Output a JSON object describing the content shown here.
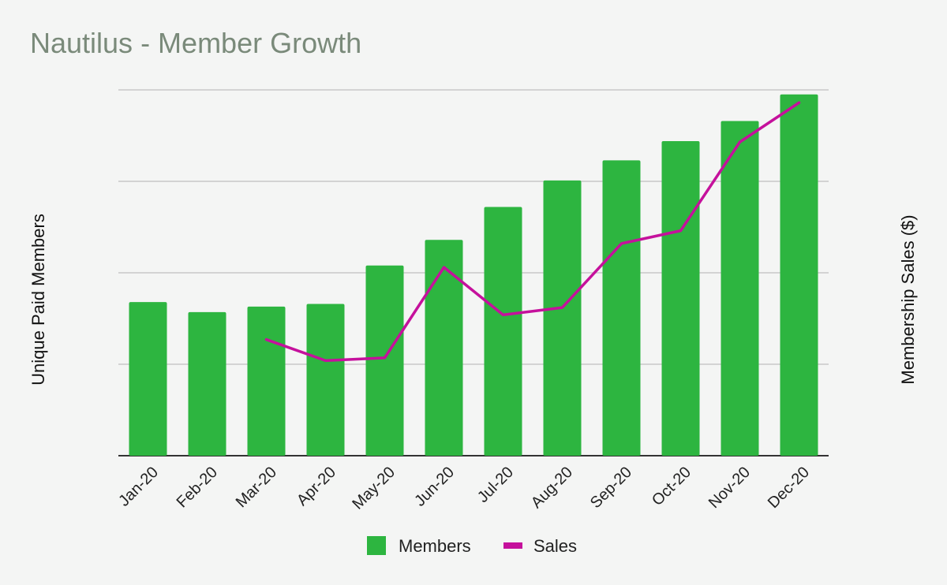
{
  "chart_data": {
    "type": "bar",
    "title": "Nautilus - Member Growth",
    "ylabel": "Unique Paid Members",
    "y2label": "Membership Sales ($)",
    "categories": [
      "Jan-20",
      "Feb-20",
      "Mar-20",
      "Apr-20",
      "May-20",
      "Jun-20",
      "Jul-20",
      "Aug-20",
      "Sep-20",
      "Oct-20",
      "Nov-20",
      "Dec-20"
    ],
    "ylim": [
      0,
      4
    ],
    "y2lim": [
      0,
      4
    ],
    "grid": true,
    "y_tick_labels_shown": false,
    "legend_position": "bottom",
    "series": [
      {
        "name": "Members",
        "type": "bar",
        "axis": "left",
        "color": "#2db540",
        "values": [
          1.68,
          1.57,
          1.63,
          1.66,
          2.08,
          2.36,
          2.72,
          3.01,
          3.23,
          3.44,
          3.66,
          3.95
        ]
      },
      {
        "name": "Sales",
        "type": "line",
        "axis": "right",
        "color": "#c5119c",
        "values": [
          null,
          null,
          1.27,
          1.04,
          1.07,
          2.06,
          1.54,
          1.62,
          2.32,
          2.46,
          3.43,
          3.86
        ]
      }
    ]
  }
}
